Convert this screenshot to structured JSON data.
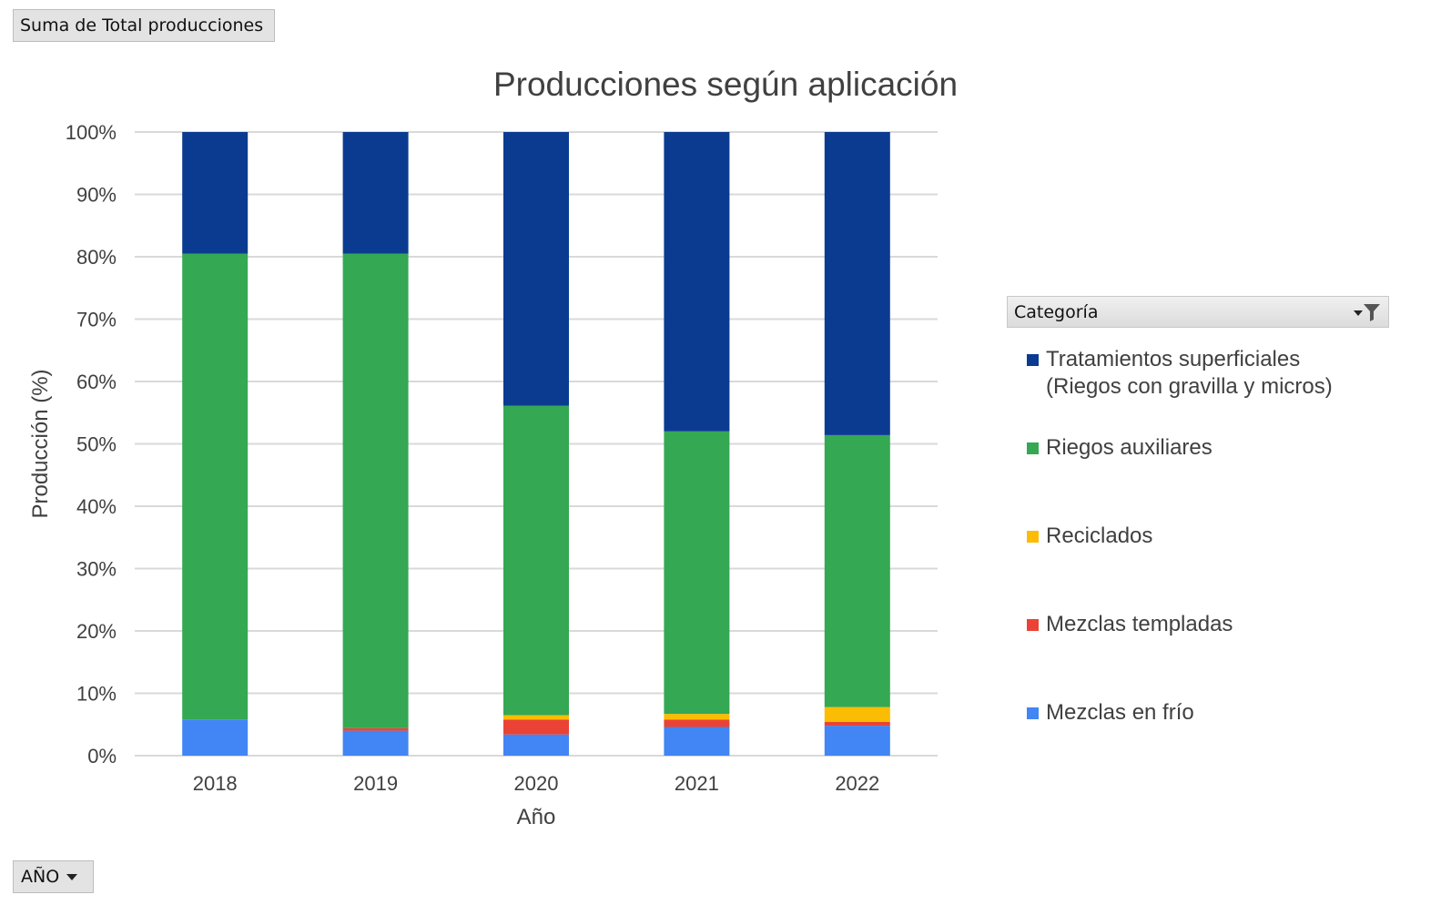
{
  "pivot": {
    "value_field_label": "Suma de Total producciones",
    "axis_field_label": "AÑO",
    "legend_field_label": "Categoría",
    "legend_filter_icon": "filter-dropdown-icon",
    "axis_dropdown_icon": "chevron-down-icon"
  },
  "chart_data": {
    "type": "bar",
    "stacked": true,
    "title": "Producciones según aplicación",
    "xlabel": "Año",
    "ylabel": "Producción (%)",
    "ylim": [
      0,
      100
    ],
    "yticks": [
      "0%",
      "10%",
      "20%",
      "30%",
      "40%",
      "50%",
      "60%",
      "70%",
      "80%",
      "90%",
      "100%"
    ],
    "grid": true,
    "legend_position": "right",
    "categories": [
      "2018",
      "2019",
      "2020",
      "2021",
      "2022"
    ],
    "series": [
      {
        "name": "Mezclas en frío",
        "color": "#4285F4",
        "values": [
          5.8,
          4.0,
          3.4,
          4.6,
          4.8
        ]
      },
      {
        "name": "Mezclas templadas",
        "color": "#EA4335",
        "values": [
          0.0,
          0.4,
          2.4,
          1.2,
          0.6
        ]
      },
      {
        "name": "Reciclados",
        "color": "#FBBC04",
        "values": [
          0.0,
          0.0,
          0.7,
          0.9,
          2.4
        ]
      },
      {
        "name": "Riegos auxiliares",
        "color": "#34A853",
        "values": [
          74.7,
          76.1,
          49.6,
          45.3,
          43.6
        ]
      },
      {
        "name": "Tratamientos superficiales (Riegos con gravilla y micros)",
        "color": "#0B3B91",
        "values": [
          19.5,
          19.5,
          43.9,
          48.0,
          48.6
        ]
      }
    ],
    "legend_order": [
      [
        "Tratamientos superficiales",
        "(Riegos con gravilla y micros)"
      ],
      [
        "Riegos auxiliares"
      ],
      [
        "Reciclados"
      ],
      [
        "Mezclas templadas"
      ],
      [
        "Mezclas en frío"
      ]
    ]
  }
}
